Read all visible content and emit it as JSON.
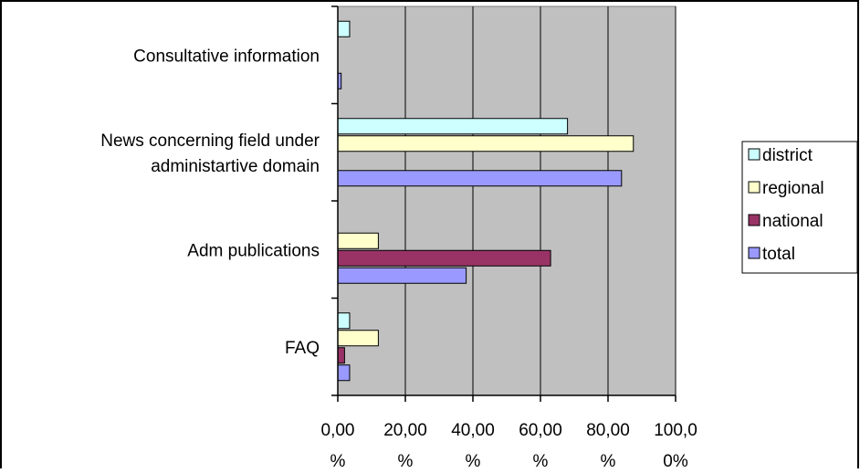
{
  "chart_data": {
    "type": "bar",
    "orientation": "horizontal",
    "categories": [
      [
        "Consultative information"
      ],
      [
        "News concerning field under",
        "administartive domain"
      ],
      [
        "Adm publications"
      ],
      [
        "FAQ"
      ]
    ],
    "series": [
      {
        "name": "district",
        "color": "#ccffff",
        "values": [
          3.5,
          68,
          null,
          3.5
        ]
      },
      {
        "name": "regional",
        "color": "#ffffcc",
        "values": [
          null,
          87.5,
          12,
          12
        ]
      },
      {
        "name": "national",
        "color": "#993366",
        "values": [
          null,
          null,
          63,
          2
        ]
      },
      {
        "name": "total",
        "color": "#9999ff",
        "values": [
          1,
          84,
          38,
          3.5
        ]
      }
    ],
    "x_ticks": [
      [
        "0,00",
        "%"
      ],
      [
        "20,00",
        "%"
      ],
      [
        "40,00",
        "%"
      ],
      [
        "60,00",
        "%"
      ],
      [
        "80,00",
        "%"
      ],
      [
        "100,0",
        "0%"
      ]
    ],
    "xlim": [
      0,
      100
    ],
    "grid": true,
    "legend_position": "right",
    "plot_background": "#c0c0c0"
  }
}
